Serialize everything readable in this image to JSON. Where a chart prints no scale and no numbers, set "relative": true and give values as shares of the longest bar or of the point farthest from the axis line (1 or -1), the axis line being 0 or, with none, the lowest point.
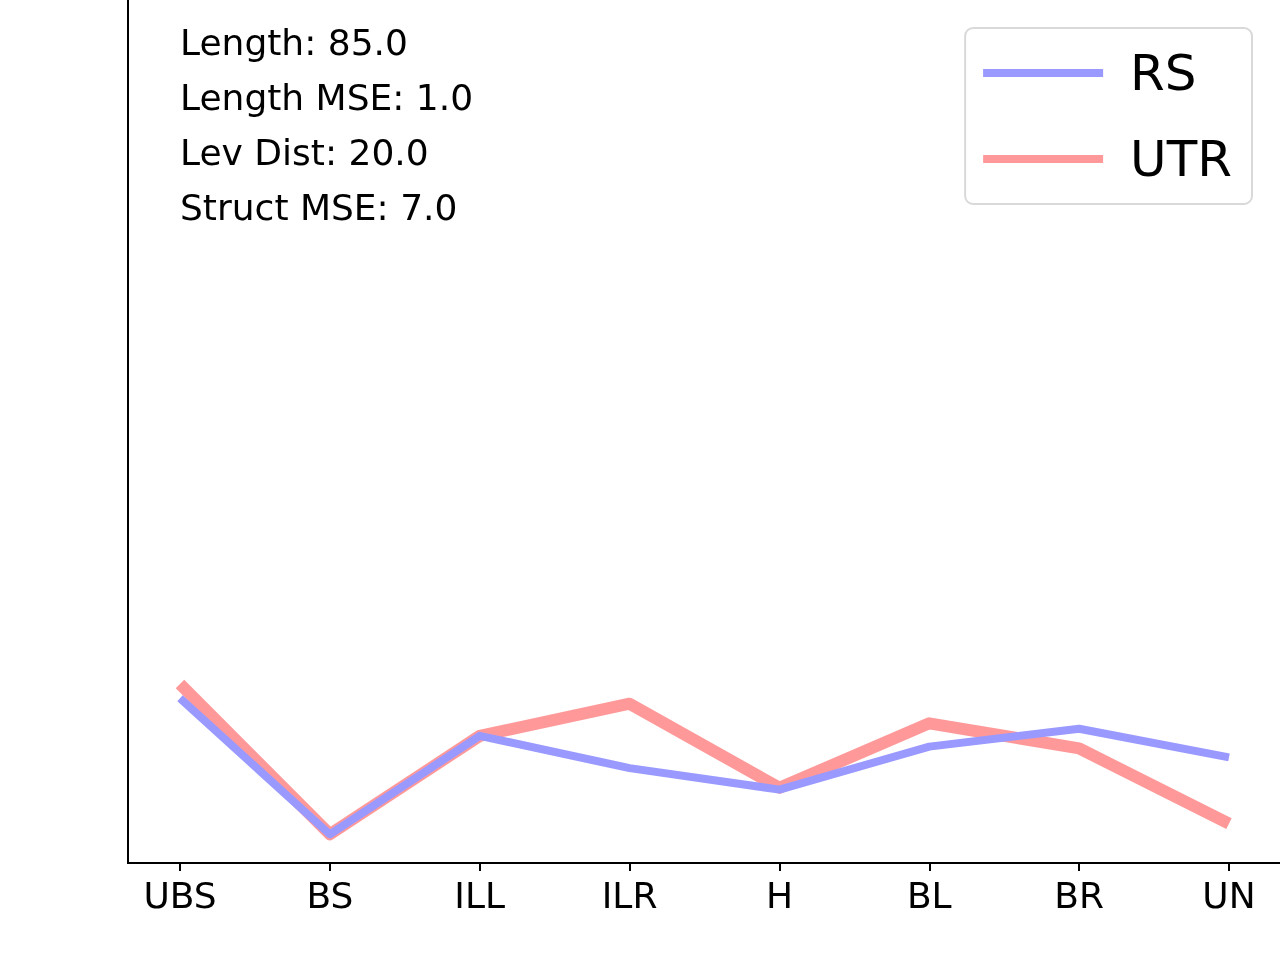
{
  "chart_data": {
    "type": "line",
    "relative": true,
    "categories": [
      "UBS",
      "BS",
      "ILL",
      "ILR",
      "H",
      "BL",
      "BR",
      "UN"
    ],
    "series": [
      {
        "name": "RS",
        "color": "#9999ff",
        "values": [
          0.92,
          0.16,
          0.71,
          0.53,
          0.41,
          0.65,
          0.75,
          0.59
        ]
      },
      {
        "name": "UTR",
        "color": "#ff9999",
        "values": [
          1,
          0.16,
          0.71,
          0.89,
          0.42,
          0.78,
          0.64,
          0.22
        ]
      }
    ],
    "annotations": [
      "Length: 85.0",
      "Length MSE: 1.0",
      "Lev Dist: 20.0",
      "Struct MSE: 7.0"
    ],
    "legend": "top right",
    "grid": false,
    "marker": "none",
    "line_style": "solid"
  }
}
